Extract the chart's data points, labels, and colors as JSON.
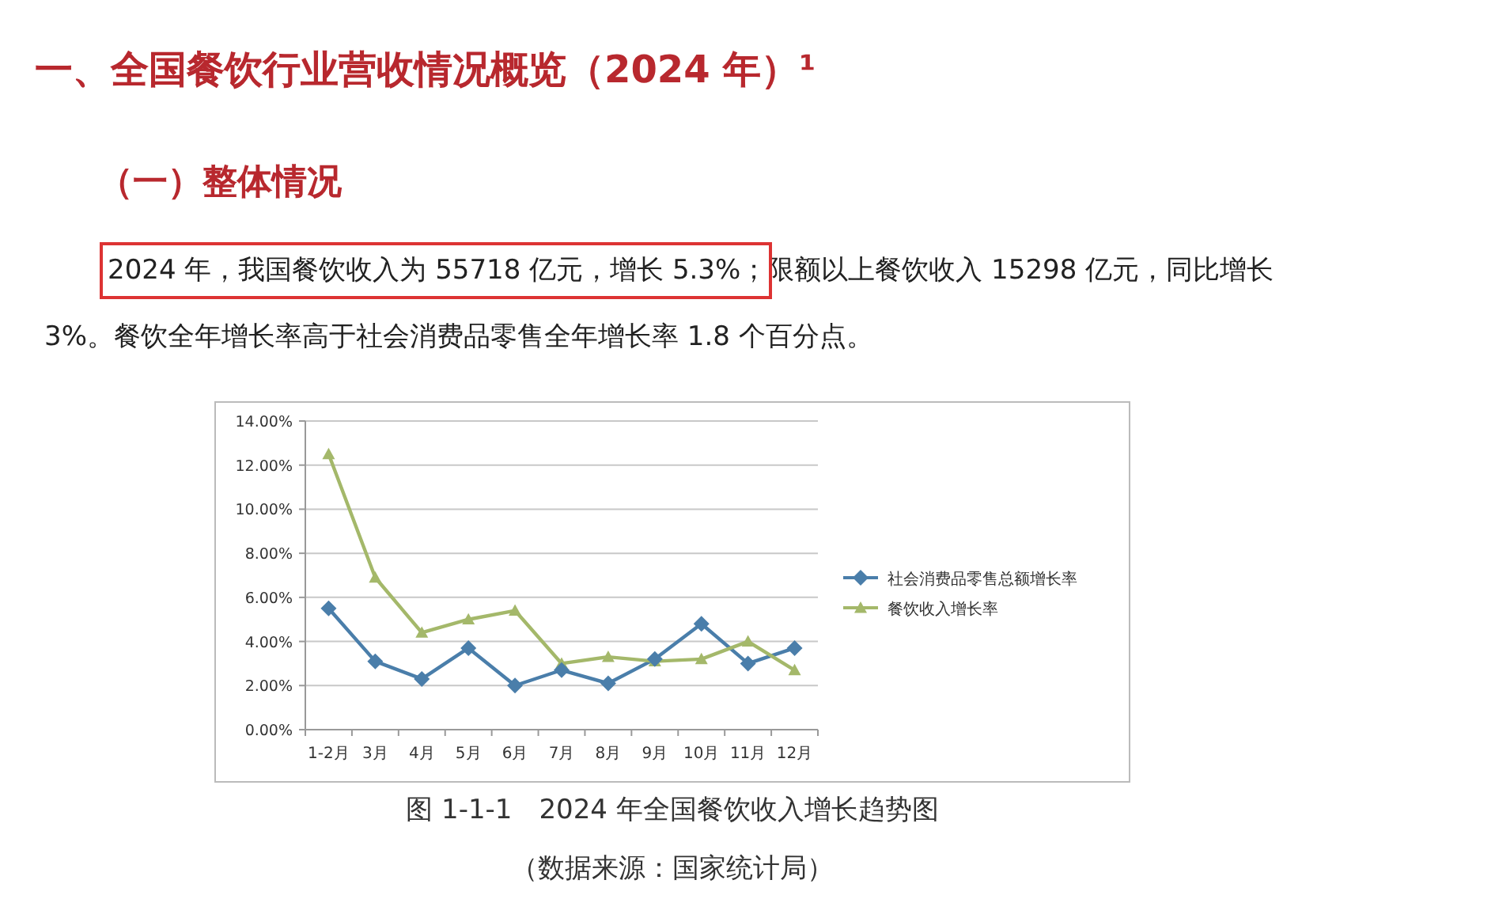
{
  "chart_data": {
    "type": "line",
    "title": "一、全国餐饮行业营收情况概览（2024 年）¹",
    "subtitle": "（一）整体情况",
    "annotations": [
      "2024 年，我国餐饮收入为 55718 亿元，增长 5.3%；",
      "限额以上餐饮收入 15298 亿元，同比增长 3%。餐饮全年增长率高于社会消费品零售全年增长率 1.8 个百分点。",
      "图 1-1-1　2024 年全国餐饮收入增长趋势图",
      "（数据来源：国家统计局）"
    ],
    "categories": [
      "1-2月",
      "3月",
      "4月",
      "5月",
      "6月",
      "7月",
      "8月",
      "9月",
      "10月",
      "11月",
      "12月"
    ],
    "series": [
      {
        "name": "社会消费品零售总额增长率",
        "color": "#4a7eaa",
        "marker": "diamond",
        "values": [
          5.5,
          3.1,
          2.3,
          3.7,
          2.0,
          2.7,
          2.1,
          3.2,
          4.8,
          3.0,
          3.7
        ]
      },
      {
        "name": "餐饮收入增长率",
        "color": "#a4b86a",
        "marker": "triangle",
        "values": [
          12.5,
          6.9,
          4.4,
          5.0,
          5.4,
          3.0,
          3.3,
          3.1,
          3.2,
          4.0,
          2.7
        ]
      }
    ],
    "ylim": [
      0,
      14
    ],
    "yticks": [
      {
        "value": 0,
        "label": "0.00%"
      },
      {
        "value": 2,
        "label": "2.00%"
      },
      {
        "value": 4,
        "label": "4.00%"
      },
      {
        "value": 6,
        "label": "6.00%"
      },
      {
        "value": 8,
        "label": "8.00%"
      },
      {
        "value": 10,
        "label": "10.00%"
      },
      {
        "value": 12,
        "label": "12.00%"
      },
      {
        "value": 14,
        "label": "14.00%"
      }
    ],
    "grid": "y",
    "legend": "right",
    "line_style": "solid"
  }
}
